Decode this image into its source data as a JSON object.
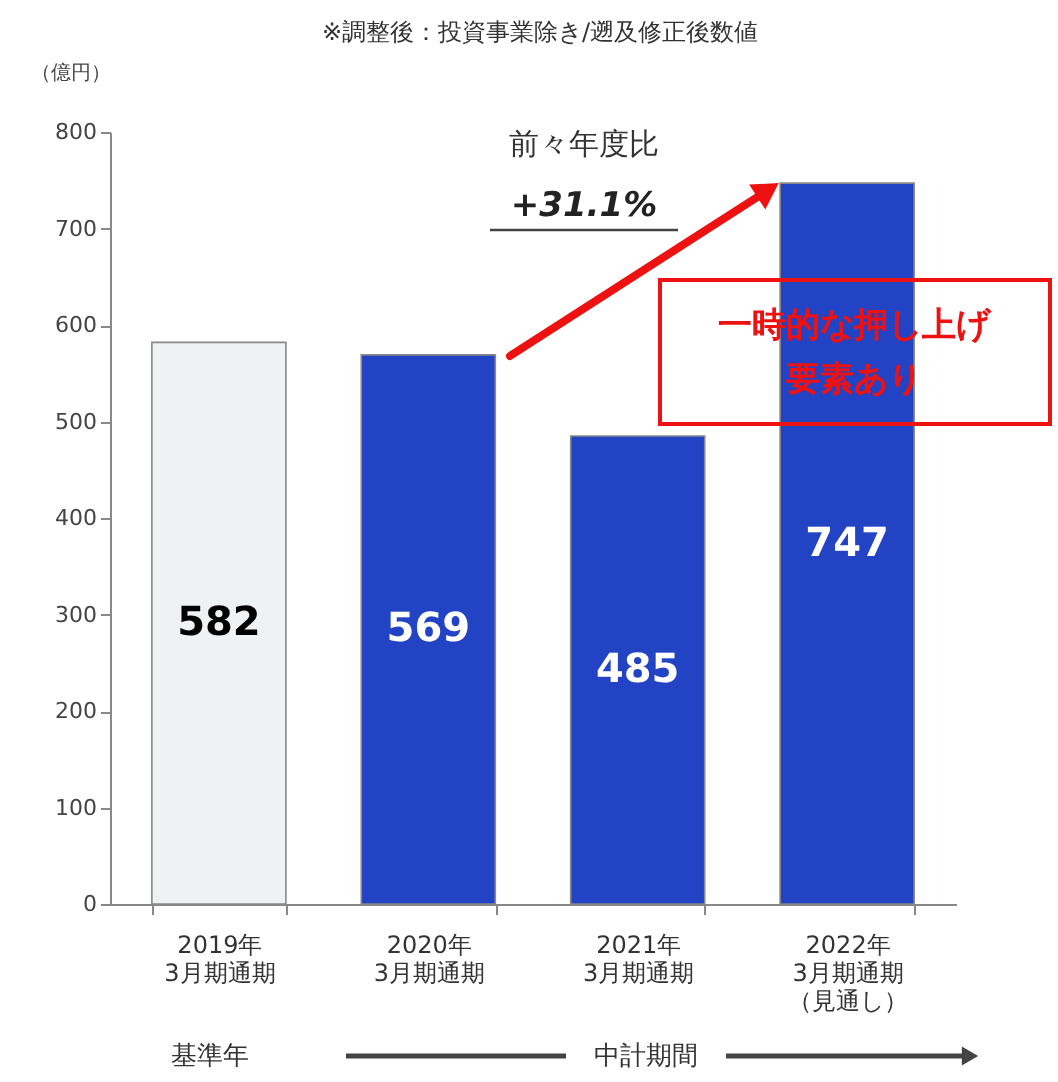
{
  "chart_data": {
    "type": "bar",
    "title": "※調整後：投資事業除き/遡及修正後数値",
    "ylabel": "（億円）",
    "categories": [
      "2019年3月期通期",
      "2020年3月期通期",
      "2021年3月期通期",
      "2022年3月期通期（見通し）"
    ],
    "values": [
      582,
      569,
      485,
      747
    ],
    "colors": [
      "#eef2f2",
      "#2243c4",
      "#2243c4",
      "#2243c4"
    ],
    "ylim": [
      0,
      800
    ],
    "yticks": [
      0,
      100,
      200,
      300,
      400,
      500,
      600,
      700,
      800
    ],
    "data_labels": true,
    "grid": false,
    "annotations": [
      "前々年度比",
      "+31.1%",
      "一時的な押し上げ要素あり",
      "基準年",
      "中計期間"
    ]
  }
}
